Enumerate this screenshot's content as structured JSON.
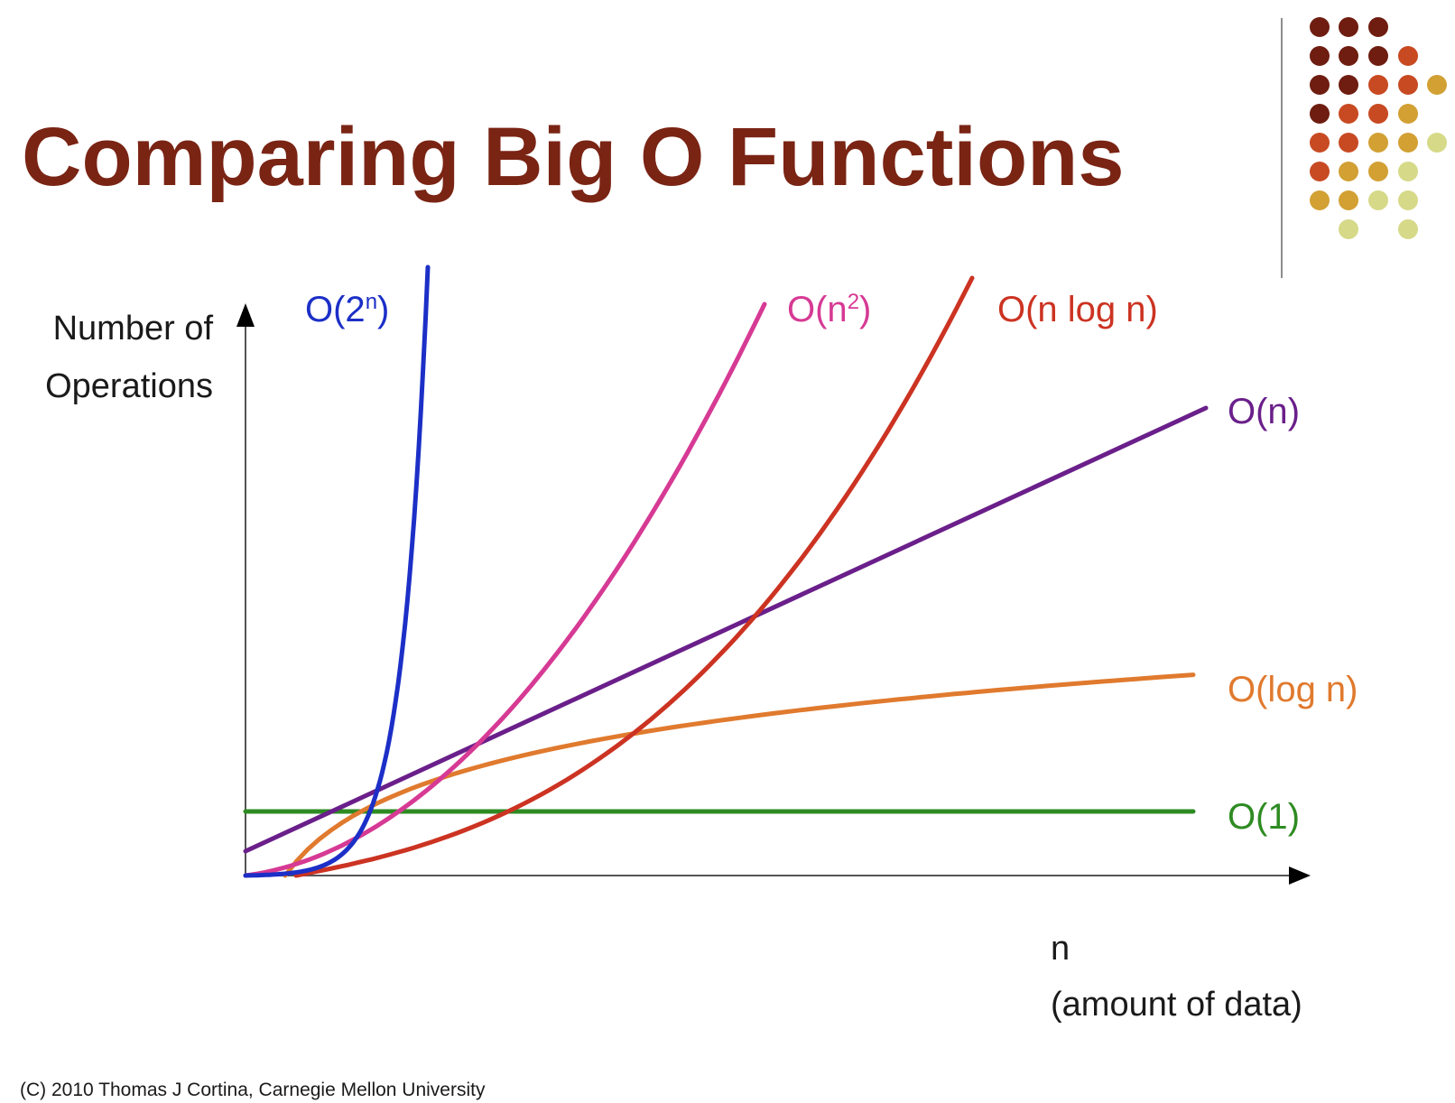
{
  "slide": {
    "title": "Comparing Big O Functions",
    "copyright": "(C) 2010 Thomas J Cortina, Carnegie Mellon University",
    "decor_colors": [
      "#6e1d10",
      "#c84a22",
      "#d2a033",
      "#d6d987"
    ]
  },
  "chart_data": {
    "type": "line",
    "title": "Comparing Big O Functions",
    "ylabel_lines": [
      "Number of",
      "Operations"
    ],
    "xlabel_lines": [
      "n",
      "(amount of data)"
    ],
    "axis_ticks": "none",
    "grid": false,
    "legend": "inline labels at curve ends",
    "series": [
      {
        "name": "O(1)",
        "label_base": "O(1",
        "label_sup": "",
        "color": "#2e8b22",
        "kind": "constant"
      },
      {
        "name": "O(log n)",
        "label_base": "O(log n",
        "label_sup": "",
        "color": "#e07a2e",
        "kind": "log"
      },
      {
        "name": "O(n)",
        "label_base": "O(n",
        "label_sup": "",
        "color": "#6a1f8a",
        "kind": "linear"
      },
      {
        "name": "O(n log n)",
        "label_base": "O(n log n",
        "label_sup": "",
        "color": "#cc3322",
        "kind": "nlogn"
      },
      {
        "name": "O(n²)",
        "label_base": "O(n",
        "label_sup": "2",
        "color": "#d63a94",
        "kind": "quadratic"
      },
      {
        "name": "O(2ⁿ)",
        "label_base": "O(2",
        "label_sup": "n",
        "color": "#1c2fc7",
        "kind": "exponential"
      }
    ]
  }
}
